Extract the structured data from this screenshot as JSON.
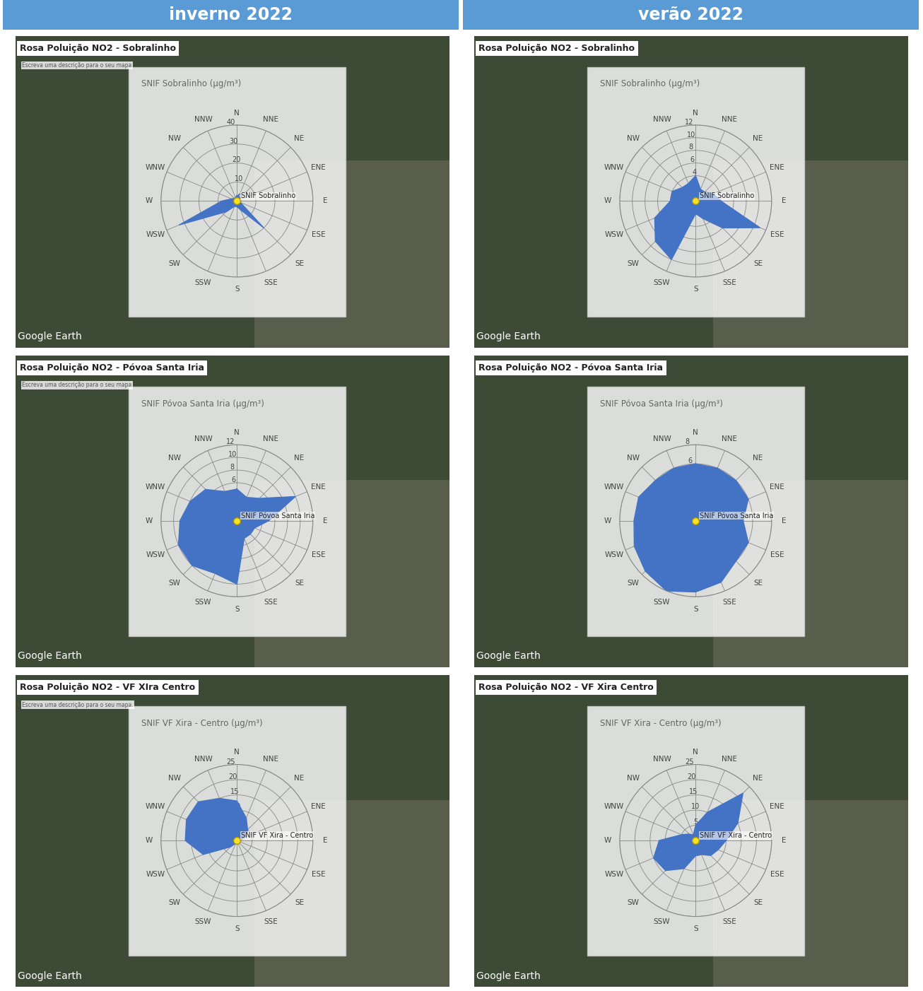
{
  "columns": [
    "inverno 2022",
    "verão 2022"
  ],
  "chart_data": [
    {
      "type": "radar",
      "title": "SNIF Sobralinho (µg/m³)",
      "map_title": "Rosa Poluição NO2 - Sobralinho",
      "map_note": "Escreva uma descrição para o seu mapa",
      "marker_label": "SNIF Sobralinho",
      "credit": "Google Earth",
      "categories": [
        "N",
        "NNE",
        "NE",
        "ENE",
        "E",
        "ESE",
        "SE",
        "SSE",
        "S",
        "SSW",
        "SW",
        "WSW",
        "W",
        "WNW",
        "NW",
        "NNW"
      ],
      "values": [
        3,
        3,
        2,
        2,
        2,
        2,
        20,
        5,
        3,
        3,
        8,
        33,
        8,
        3,
        2,
        2
      ],
      "color": "#4472c4",
      "ylim": [
        0,
        40
      ],
      "yticks": [
        0,
        10,
        20,
        30,
        40
      ],
      "grid": true
    },
    {
      "type": "radar",
      "title": "SNIF Sobralinho (µg/m³)",
      "map_title": "Rosa Poluição NO2 - Sobralinho",
      "marker_label": "SNIF Sobralinho",
      "credit": "Google Earth",
      "categories": [
        "N",
        "NNE",
        "NE",
        "ENE",
        "E",
        "ESE",
        "SE",
        "SSE",
        "S",
        "SSW",
        "SW",
        "WSW",
        "W",
        "WNW",
        "NW",
        "NNW"
      ],
      "values": [
        4,
        2,
        2,
        3,
        4,
        11,
        6,
        3,
        2,
        10,
        9,
        7,
        4,
        4,
        3,
        3
      ],
      "color": "#4472c4",
      "ylim": [
        0,
        12
      ],
      "yticks": [
        0,
        2,
        4,
        6,
        8,
        10,
        12
      ],
      "grid": true
    },
    {
      "type": "radar",
      "title": "SNIF Póvoa Santa Iria (µg/m³)",
      "map_title": "Rosa Poluição NO2 - Póvoa Santa Iria",
      "map_note": "Escreva uma descrição para o seu mapa",
      "marker_label": "SNIF Póvoa Santa Iria",
      "credit": "Google Earth",
      "categories": [
        "N",
        "NNE",
        "NE",
        "ENE",
        "E",
        "ESE",
        "SE",
        "SSE",
        "S",
        "SSW",
        "SW",
        "WSW",
        "W",
        "WNW",
        "NW",
        "NNW"
      ],
      "values": [
        5,
        4,
        5,
        10,
        5,
        3,
        3,
        3,
        10,
        9,
        10,
        10,
        9,
        8,
        7,
        5
      ],
      "color": "#4472c4",
      "ylim": [
        0,
        12
      ],
      "yticks": [
        0,
        2,
        4,
        6,
        8,
        10,
        12
      ],
      "grid": true
    },
    {
      "type": "radar",
      "title": "SNIF Póvoa Santa Iria (µg/m³)",
      "map_title": "Rosa Poluição NO2 - Póvoa Santa Iria",
      "marker_label": "SNIF Póvoa Santa Iria",
      "credit": "Google Earth",
      "categories": [
        "N",
        "NNE",
        "NE",
        "ENE",
        "E",
        "ESE",
        "SE",
        "SSE",
        "S",
        "SSW",
        "SW",
        "WSW",
        "W",
        "WNW",
        "NW",
        "NNW"
      ],
      "values": [
        6,
        6,
        6,
        6,
        5,
        6,
        6,
        7,
        7.5,
        8,
        7.5,
        7,
        6.5,
        6.5,
        6,
        6
      ],
      "color": "#4472c4",
      "ylim": [
        0,
        8
      ],
      "yticks": [
        0,
        2,
        4,
        6,
        8
      ],
      "grid": true
    },
    {
      "type": "radar",
      "title": "SNIF VF Xira - Centro (µg/m³)",
      "map_title": "Rosa Poluição NO2 - VF XIra Centro",
      "map_note": "Escreva uma descrição para o seu mapa.",
      "marker_label": "SNIF VF Xira - Centro",
      "credit": "Google Earth",
      "categories": [
        "N",
        "NNE",
        "NE",
        "ENE",
        "E",
        "ESE",
        "SE",
        "SSE",
        "S",
        "SSW",
        "SW",
        "WSW",
        "W",
        "WNW",
        "NW",
        "NNW"
      ],
      "values": [
        13,
        8,
        5,
        3,
        1,
        0,
        0,
        0,
        0,
        1,
        3,
        12,
        17,
        18,
        18,
        15
      ],
      "color": "#4472c4",
      "ylim": [
        0,
        25
      ],
      "yticks": [
        0,
        5,
        10,
        15,
        20,
        25
      ],
      "grid": true
    },
    {
      "type": "radar",
      "title": "SNIF VF Xira - Centro (µg/m³)",
      "map_title": "Rosa Poluição NO2 - VF Xira Centro",
      "marker_label": "SNIF VF Xira - Centro",
      "credit": "Google Earth",
      "categories": [
        "N",
        "NNE",
        "NE",
        "ENE",
        "E",
        "ESE",
        "SE",
        "SSE",
        "S",
        "SSW",
        "SW",
        "WSW",
        "W",
        "WNW",
        "NW",
        "NNW"
      ],
      "values": [
        5,
        10,
        22,
        15,
        10,
        8,
        7,
        5,
        5,
        10,
        14,
        15,
        12,
        5,
        3,
        2
      ],
      "color": "#4472c4",
      "ylim": [
        0,
        25
      ],
      "yticks": [
        0,
        5,
        10,
        15,
        20,
        25
      ],
      "grid": true
    }
  ]
}
